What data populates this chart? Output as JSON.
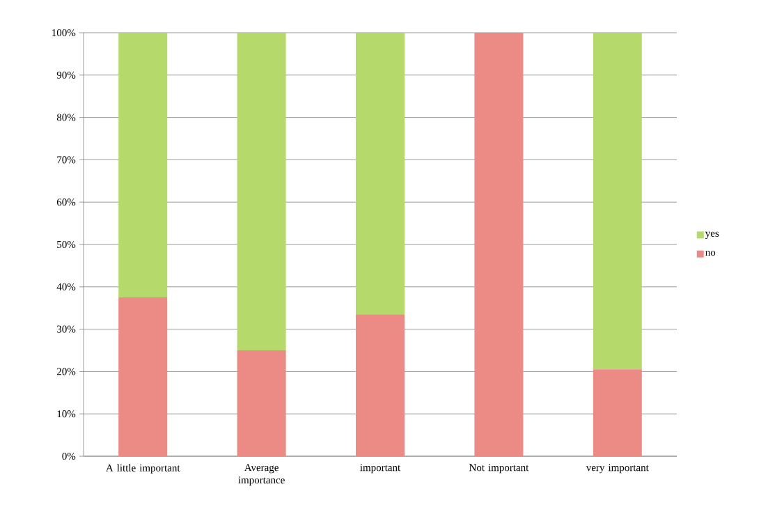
{
  "chart_data": {
    "type": "bar",
    "stacked": true,
    "categories": [
      "A little important",
      "Average importance",
      "important",
      "Not important",
      "very important"
    ],
    "series": [
      {
        "name": "no",
        "color": "#ec8a86",
        "values": [
          37.5,
          25,
          33.5,
          100,
          20.5
        ]
      },
      {
        "name": "yes",
        "color": "#b5d96a",
        "values": [
          62.5,
          75,
          66.5,
          0,
          79.5
        ]
      }
    ],
    "ylim": [
      0,
      100
    ],
    "yticks": [
      {
        "value": 0,
        "label": "0%"
      },
      {
        "value": 10,
        "label": "10%"
      },
      {
        "value": 20,
        "label": "20%"
      },
      {
        "value": 30,
        "label": "30%"
      },
      {
        "value": 40,
        "label": "40%"
      },
      {
        "value": 50,
        "label": "50%"
      },
      {
        "value": 60,
        "label": "60%"
      },
      {
        "value": 70,
        "label": "70%"
      },
      {
        "value": 80,
        "label": "80%"
      },
      {
        "value": 90,
        "label": "90%"
      },
      {
        "value": 100,
        "label": "100%"
      }
    ],
    "grid": "y",
    "legend": "right"
  }
}
